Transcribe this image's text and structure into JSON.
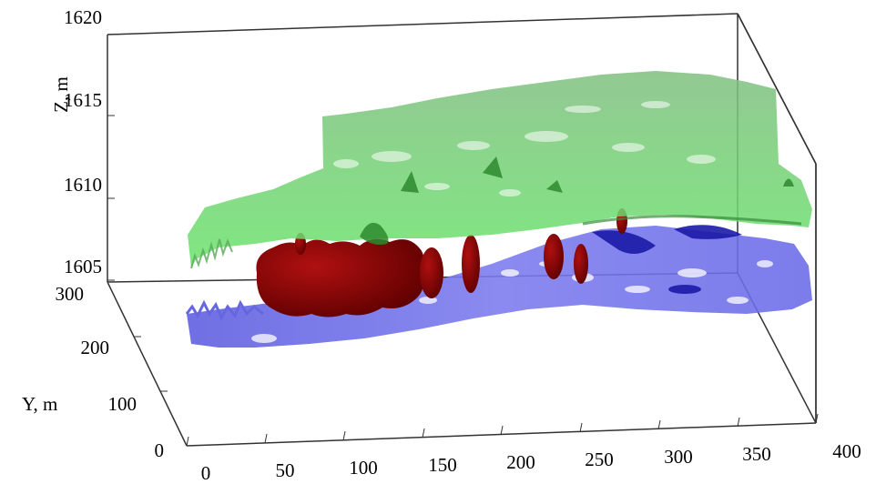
{
  "chart_data": {
    "type": "surface3d",
    "axes": {
      "x": {
        "label": "",
        "ticks": [
          "0",
          "50",
          "100",
          "150",
          "200",
          "250",
          "300",
          "350",
          "400"
        ],
        "range": [
          0,
          400
        ]
      },
      "y": {
        "label": "Y, m",
        "ticks": [
          "0",
          "100",
          "200",
          "300"
        ],
        "range": [
          0,
          300
        ]
      },
      "z": {
        "label": "Z, m",
        "ticks": [
          "1605",
          "1610",
          "1615",
          "1620"
        ],
        "range": [
          1605,
          1620
        ]
      }
    },
    "surfaces": [
      {
        "color": "#6f6fe6",
        "description": "lower surface"
      },
      {
        "color": "#6fd36f",
        "description": "upper surface"
      }
    ],
    "bodies_color": "#8b0000"
  }
}
